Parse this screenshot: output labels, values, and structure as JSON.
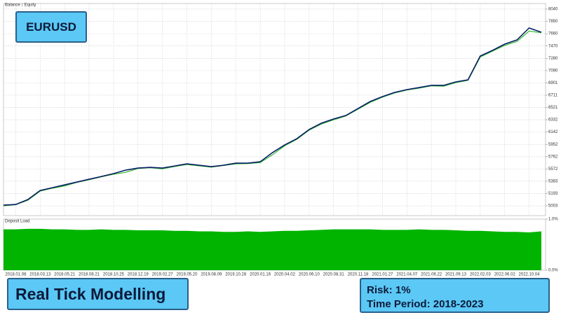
{
  "chart_data": [
    {
      "type": "line",
      "categories": [
        null,
        "2018.01.08",
        null,
        "2018.03.13",
        null,
        "2018.05.21",
        null,
        "2018.08.21",
        null,
        "2018.10.25",
        null,
        "2018.12.19",
        null,
        "2019.02.27",
        null,
        "2019.05.20",
        null,
        "2019.08.09",
        null,
        "2019.10.28",
        null,
        "2020.01.16",
        null,
        "2020.04.02",
        null,
        "2020.06.10",
        null,
        "2020.08.31",
        null,
        "2020.11.18",
        null,
        "2021.01.27",
        null,
        "2021.04.07",
        null,
        "2021.06.22",
        null,
        "2021.09.13",
        null,
        "2022.02.03",
        null,
        "2022.06.02",
        null,
        "2022.10.04",
        null
      ],
      "series": [
        {
          "name": "Balance",
          "color": "#0a1f66",
          "values": [
            5013,
            5024,
            5100,
            5240,
            5283,
            5327,
            5370,
            5413,
            5456,
            5500,
            5554,
            5586,
            5597,
            5586,
            5618,
            5651,
            5629,
            5608,
            5629,
            5662,
            5662,
            5683,
            5824,
            5943,
            6040,
            6181,
            6278,
            6343,
            6397,
            6505,
            6613,
            6689,
            6754,
            6797,
            6829,
            6862,
            6862,
            6916,
            6948,
            7316,
            7402,
            7499,
            7564,
            7748,
            7683
          ]
        },
        {
          "name": "Equity",
          "color": "#2eb82e",
          "values": [
            5003,
            5020,
            5090,
            5230,
            5275,
            5310,
            5365,
            5405,
            5450,
            5490,
            5520,
            5580,
            5590,
            5575,
            5610,
            5640,
            5620,
            5600,
            5625,
            5650,
            5655,
            5670,
            5790,
            5930,
            6030,
            6170,
            6265,
            6330,
            6390,
            6495,
            6600,
            6680,
            6745,
            6790,
            6820,
            6855,
            6850,
            6905,
            6940,
            7300,
            7390,
            7480,
            7540,
            7700,
            7675
          ]
        }
      ],
      "ylim": [
        4852,
        8126
      ],
      "yticks": [
        8040,
        7850,
        7660,
        7470,
        7280,
        7090,
        6901,
        6711,
        6521,
        6332,
        6142,
        5952,
        5762,
        5572,
        5383,
        5193,
        5003
      ],
      "grid": true
    },
    {
      "type": "area",
      "title": "Deposit Load",
      "color": "#00b400",
      "values": [
        0.8,
        0.8,
        0.81,
        0.81,
        0.8,
        0.8,
        0.79,
        0.79,
        0.8,
        0.79,
        0.79,
        0.78,
        0.78,
        0.78,
        0.77,
        0.77,
        0.76,
        0.76,
        0.75,
        0.75,
        0.76,
        0.75,
        0.76,
        0.77,
        0.77,
        0.78,
        0.79,
        0.8,
        0.8,
        0.8,
        0.8,
        0.79,
        0.79,
        0.79,
        0.8,
        0.79,
        0.79,
        0.78,
        0.77,
        0.77,
        0.76,
        0.75,
        0.75,
        0.74,
        0.76
      ],
      "ylim": [
        0,
        1.0
      ],
      "yticks": [
        {
          "value": 1.0,
          "label": "1.0%"
        },
        {
          "value": 0,
          "label": "0.0%"
        }
      ]
    }
  ],
  "overlays": {
    "symbol": "EURUSD",
    "modelling": "Real Tick Modelling",
    "risk": "Risk: 1%",
    "period": "Time Period: 2018-2023"
  }
}
